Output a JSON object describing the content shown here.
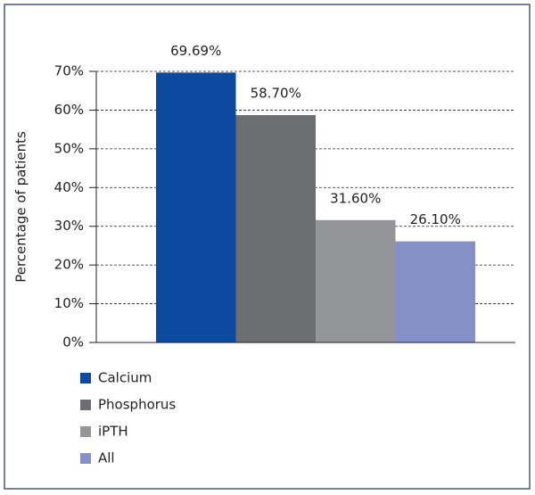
{
  "chart_data": {
    "type": "bar",
    "y_label": "Percentage of patients",
    "series": [
      {
        "name": "Calcium",
        "color": "#0b4a9e",
        "values": [
          69.69
        ],
        "value_labels": [
          "69.69%"
        ]
      },
      {
        "name": "Phosphorus",
        "color": "#6d6e71",
        "values": [
          58.7
        ],
        "value_labels": [
          "58.70%"
        ]
      },
      {
        "name": "iPTH",
        "color": "#939598",
        "values": [
          31.6
        ],
        "value_labels": [
          "31.60%"
        ]
      },
      {
        "name": "All",
        "color": "#8590c8",
        "values": [
          26.1
        ],
        "value_labels": [
          "26.10%"
        ]
      }
    ],
    "ylim": [
      0,
      70
    ],
    "yticks": [
      {
        "value": 0,
        "label": "0%"
      },
      {
        "value": 10,
        "label": "10%"
      },
      {
        "value": 20,
        "label": "20%"
      },
      {
        "value": 30,
        "label": "30%"
      },
      {
        "value": 40,
        "label": "40%"
      },
      {
        "value": 50,
        "label": "50%"
      },
      {
        "value": 60,
        "label": "60%"
      },
      {
        "value": 70,
        "label": "70%"
      }
    ],
    "grid": true,
    "grid_style": "dashed",
    "legend": "bottom-left"
  }
}
